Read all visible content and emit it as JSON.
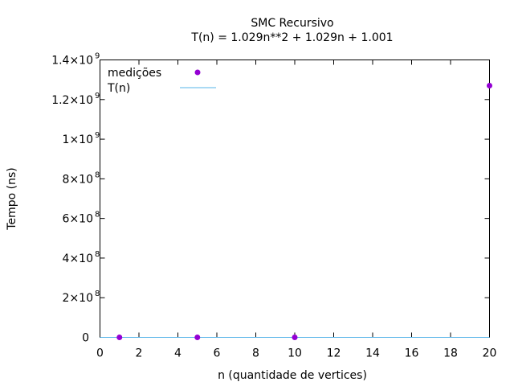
{
  "chart_data": {
    "type": "scatter",
    "title": "SMC Recursivo",
    "subtitle": "T(n) = 1.029n**2 + 1.029n + 1.001",
    "xlabel": "n (quantidade de vertices)",
    "ylabel": "Tempo (ns)",
    "xlim": [
      0,
      20
    ],
    "ylim": [
      0,
      1400000000
    ],
    "x_ticks": [
      0,
      2,
      4,
      6,
      8,
      10,
      12,
      14,
      16,
      18,
      20
    ],
    "x_tick_labels": [
      "0",
      "2",
      "4",
      "6",
      "8",
      "10",
      "12",
      "14",
      "16",
      "18",
      "20"
    ],
    "y_ticks": [
      0,
      200000000,
      400000000,
      600000000,
      800000000,
      1000000000,
      1200000000,
      1400000000
    ],
    "y_tick_labels": [
      {
        "base": "0",
        "exp": ""
      },
      {
        "base": "2×10",
        "exp": "8"
      },
      {
        "base": "4×10",
        "exp": "8"
      },
      {
        "base": "6×10",
        "exp": "8"
      },
      {
        "base": "8×10",
        "exp": "8"
      },
      {
        "base": "1×10",
        "exp": "9"
      },
      {
        "base": "1.2×10",
        "exp": "9"
      },
      {
        "base": "1.4×10",
        "exp": "9"
      }
    ],
    "grid": false,
    "legend_position": "top-left",
    "series": [
      {
        "name": "medições",
        "kind": "points",
        "color": "#9400d3",
        "x": [
          1,
          5,
          10,
          20
        ],
        "y": [
          0,
          0,
          0,
          1270000000
        ]
      },
      {
        "name": "T(n)",
        "kind": "line",
        "color": "#56b4e9",
        "coefficients": [
          1.029,
          1.029,
          1.001
        ]
      }
    ]
  }
}
